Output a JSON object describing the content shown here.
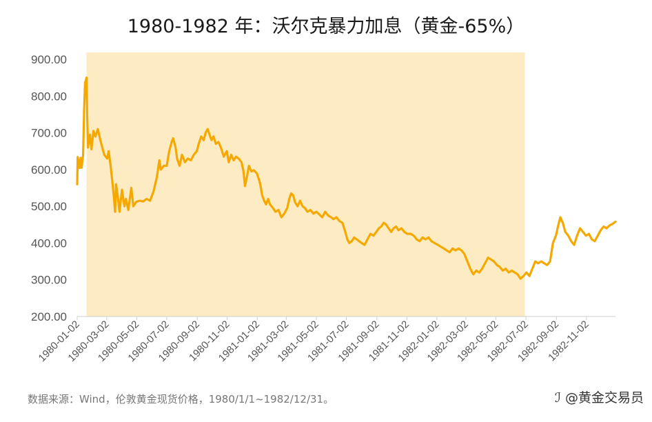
{
  "chart_data": {
    "type": "line",
    "title": "1980-1982 年：沃尔克暴力加息（黄金-65%）",
    "xlabel": "",
    "ylabel": "",
    "ylim": [
      200,
      900
    ],
    "yticks": [
      "200.00",
      "300.00",
      "400.00",
      "500.00",
      "600.00",
      "700.00",
      "800.00",
      "900.00"
    ],
    "xticks": [
      "1980-01-02",
      "1980-03-02",
      "1980-05-02",
      "1980-07-02",
      "1980-09-02",
      "1980-11-02",
      "1981-01-02",
      "1981-03-02",
      "1981-05-02",
      "1981-07-02",
      "1981-09-02",
      "1981-11-02",
      "1982-01-02",
      "1982-03-02",
      "1982-05-02",
      "1982-07-02",
      "1982-09-02",
      "1982-11-02"
    ],
    "xlim": [
      "1980-01-02",
      "1982-12-31"
    ],
    "grid": false,
    "line_color": "#f5a800",
    "shade_color": "#fdebc3",
    "shaded_range": [
      "1980-01-21",
      "1982-06-30"
    ],
    "series": [
      {
        "values": [
          [
            "1980-01-02",
            560
          ],
          [
            "1980-01-03",
            634
          ],
          [
            "1980-01-07",
            604
          ],
          [
            "1980-01-09",
            632
          ],
          [
            "1980-01-11",
            605
          ],
          [
            "1980-01-14",
            640
          ],
          [
            "1980-01-16",
            760
          ],
          [
            "1980-01-18",
            835
          ],
          [
            "1980-01-21",
            850
          ],
          [
            "1980-01-22",
            760
          ],
          [
            "1980-01-24",
            660
          ],
          [
            "1980-01-28",
            695
          ],
          [
            "1980-01-31",
            655
          ],
          [
            "1980-02-04",
            705
          ],
          [
            "1980-02-08",
            690
          ],
          [
            "1980-02-13",
            710
          ],
          [
            "1980-02-18",
            680
          ],
          [
            "1980-02-22",
            660
          ],
          [
            "1980-02-26",
            640
          ],
          [
            "1980-03-03",
            630
          ],
          [
            "1980-03-06",
            650
          ],
          [
            "1980-03-10",
            610
          ],
          [
            "1980-03-14",
            560
          ],
          [
            "1980-03-17",
            520
          ],
          [
            "1980-03-19",
            485
          ],
          [
            "1980-03-21",
            560
          ],
          [
            "1980-03-25",
            520
          ],
          [
            "1980-03-28",
            485
          ],
          [
            "1980-04-02",
            545
          ],
          [
            "1980-04-07",
            500
          ],
          [
            "1980-04-10",
            520
          ],
          [
            "1980-04-15",
            490
          ],
          [
            "1980-04-21",
            550
          ],
          [
            "1980-04-25",
            500
          ],
          [
            "1980-05-01",
            512
          ],
          [
            "1980-05-08",
            515
          ],
          [
            "1980-05-15",
            513
          ],
          [
            "1980-05-22",
            520
          ],
          [
            "1980-05-29",
            515
          ],
          [
            "1980-06-05",
            540
          ],
          [
            "1980-06-12",
            580
          ],
          [
            "1980-06-17",
            625
          ],
          [
            "1980-06-20",
            600
          ],
          [
            "1980-06-26",
            610
          ],
          [
            "1980-07-02",
            610
          ],
          [
            "1980-07-07",
            650
          ],
          [
            "1980-07-12",
            675
          ],
          [
            "1980-07-15",
            685
          ],
          [
            "1980-07-20",
            660
          ],
          [
            "1980-07-23",
            630
          ],
          [
            "1980-07-28",
            610
          ],
          [
            "1980-08-02",
            640
          ],
          [
            "1980-08-08",
            620
          ],
          [
            "1980-08-14",
            630
          ],
          [
            "1980-08-20",
            625
          ],
          [
            "1980-08-26",
            640
          ],
          [
            "1980-09-01",
            650
          ],
          [
            "1980-09-05",
            670
          ],
          [
            "1980-09-10",
            690
          ],
          [
            "1980-09-15",
            680
          ],
          [
            "1980-09-19",
            700
          ],
          [
            "1980-09-23",
            710
          ],
          [
            "1980-09-27",
            695
          ],
          [
            "1980-10-01",
            680
          ],
          [
            "1980-10-05",
            690
          ],
          [
            "1980-10-10",
            670
          ],
          [
            "1980-10-15",
            675
          ],
          [
            "1980-10-20",
            660
          ],
          [
            "1980-10-26",
            635
          ],
          [
            "1980-11-01",
            650
          ],
          [
            "1980-11-05",
            620
          ],
          [
            "1980-11-10",
            640
          ],
          [
            "1980-11-15",
            625
          ],
          [
            "1980-11-20",
            635
          ],
          [
            "1980-11-25",
            630
          ],
          [
            "1980-12-01",
            620
          ],
          [
            "1980-12-05",
            595
          ],
          [
            "1980-12-08",
            555
          ],
          [
            "1980-12-12",
            580
          ],
          [
            "1980-12-16",
            610
          ],
          [
            "1980-12-21",
            595
          ],
          [
            "1980-12-26",
            598
          ],
          [
            "1981-01-01",
            590
          ],
          [
            "1981-01-05",
            575
          ],
          [
            "1981-01-08",
            560
          ],
          [
            "1981-01-12",
            530
          ],
          [
            "1981-01-16",
            515
          ],
          [
            "1981-01-20",
            505
          ],
          [
            "1981-01-24",
            520
          ],
          [
            "1981-01-28",
            505
          ],
          [
            "1981-02-03",
            495
          ],
          [
            "1981-02-08",
            485
          ],
          [
            "1981-02-14",
            490
          ],
          [
            "1981-02-20",
            470
          ],
          [
            "1981-02-26",
            480
          ],
          [
            "1981-03-04",
            495
          ],
          [
            "1981-03-08",
            520
          ],
          [
            "1981-03-12",
            535
          ],
          [
            "1981-03-16",
            530
          ],
          [
            "1981-03-20",
            510
          ],
          [
            "1981-03-25",
            500
          ],
          [
            "1981-03-30",
            515
          ],
          [
            "1981-04-04",
            500
          ],
          [
            "1981-04-09",
            495
          ],
          [
            "1981-04-14",
            485
          ],
          [
            "1981-04-20",
            490
          ],
          [
            "1981-04-26",
            480
          ],
          [
            "1981-05-02",
            485
          ],
          [
            "1981-05-08",
            478
          ],
          [
            "1981-05-14",
            470
          ],
          [
            "1981-05-20",
            485
          ],
          [
            "1981-05-26",
            475
          ],
          [
            "1981-06-01",
            470
          ],
          [
            "1981-06-06",
            465
          ],
          [
            "1981-06-12",
            470
          ],
          [
            "1981-06-18",
            460
          ],
          [
            "1981-06-24",
            455
          ],
          [
            "1981-06-30",
            430
          ],
          [
            "1981-07-04",
            410
          ],
          [
            "1981-07-08",
            400
          ],
          [
            "1981-07-13",
            405
          ],
          [
            "1981-07-18",
            415
          ],
          [
            "1981-07-23",
            410
          ],
          [
            "1981-07-28",
            405
          ],
          [
            "1981-08-02",
            400
          ],
          [
            "1981-08-08",
            395
          ],
          [
            "1981-08-14",
            410
          ],
          [
            "1981-08-20",
            425
          ],
          [
            "1981-08-26",
            420
          ],
          [
            "1981-09-01",
            430
          ],
          [
            "1981-09-06",
            440
          ],
          [
            "1981-09-11",
            445
          ],
          [
            "1981-09-16",
            455
          ],
          [
            "1981-09-21",
            450
          ],
          [
            "1981-09-26",
            440
          ],
          [
            "1981-10-01",
            430
          ],
          [
            "1981-10-06",
            440
          ],
          [
            "1981-10-11",
            445
          ],
          [
            "1981-10-16",
            435
          ],
          [
            "1981-10-22",
            440
          ],
          [
            "1981-10-28",
            430
          ],
          [
            "1981-11-03",
            425
          ],
          [
            "1981-11-10",
            425
          ],
          [
            "1981-11-16",
            420
          ],
          [
            "1981-11-22",
            410
          ],
          [
            "1981-11-28",
            405
          ],
          [
            "1981-12-04",
            415
          ],
          [
            "1981-12-10",
            410
          ],
          [
            "1981-12-16",
            415
          ],
          [
            "1981-12-22",
            405
          ],
          [
            "1981-12-28",
            400
          ],
          [
            "1982-01-04",
            395
          ],
          [
            "1982-01-10",
            390
          ],
          [
            "1982-01-16",
            385
          ],
          [
            "1982-01-22",
            380
          ],
          [
            "1982-01-28",
            375
          ],
          [
            "1982-02-03",
            385
          ],
          [
            "1982-02-09",
            380
          ],
          [
            "1982-02-15",
            385
          ],
          [
            "1982-02-21",
            380
          ],
          [
            "1982-02-27",
            370
          ],
          [
            "1982-03-05",
            350
          ],
          [
            "1982-03-11",
            330
          ],
          [
            "1982-03-17",
            315
          ],
          [
            "1982-03-23",
            325
          ],
          [
            "1982-03-29",
            320
          ],
          [
            "1982-04-04",
            330
          ],
          [
            "1982-04-10",
            345
          ],
          [
            "1982-04-16",
            360
          ],
          [
            "1982-04-22",
            355
          ],
          [
            "1982-04-28",
            350
          ],
          [
            "1982-05-04",
            340
          ],
          [
            "1982-05-10",
            335
          ],
          [
            "1982-05-16",
            325
          ],
          [
            "1982-05-22",
            330
          ],
          [
            "1982-05-28",
            320
          ],
          [
            "1982-06-03",
            325
          ],
          [
            "1982-06-09",
            320
          ],
          [
            "1982-06-15",
            315
          ],
          [
            "1982-06-21",
            303
          ],
          [
            "1982-06-27",
            310
          ],
          [
            "1982-07-03",
            320
          ],
          [
            "1982-07-09",
            310
          ],
          [
            "1982-07-15",
            330
          ],
          [
            "1982-07-21",
            350
          ],
          [
            "1982-07-27",
            345
          ],
          [
            "1982-08-02",
            350
          ],
          [
            "1982-08-08",
            345
          ],
          [
            "1982-08-14",
            340
          ],
          [
            "1982-08-20",
            350
          ],
          [
            "1982-08-26",
            400
          ],
          [
            "1982-09-01",
            420
          ],
          [
            "1982-09-06",
            450
          ],
          [
            "1982-09-10",
            470
          ],
          [
            "1982-09-15",
            455
          ],
          [
            "1982-09-20",
            430
          ],
          [
            "1982-09-26",
            420
          ],
          [
            "1982-10-02",
            405
          ],
          [
            "1982-10-08",
            395
          ],
          [
            "1982-10-14",
            420
          ],
          [
            "1982-10-20",
            440
          ],
          [
            "1982-10-26",
            430
          ],
          [
            "1982-11-01",
            420
          ],
          [
            "1982-11-07",
            425
          ],
          [
            "1982-11-13",
            410
          ],
          [
            "1982-11-19",
            405
          ],
          [
            "1982-11-25",
            420
          ],
          [
            "1982-12-01",
            435
          ],
          [
            "1982-12-07",
            445
          ],
          [
            "1982-12-13",
            440
          ],
          [
            "1982-12-19",
            448
          ],
          [
            "1982-12-25",
            452
          ],
          [
            "1982-12-31",
            458
          ]
        ]
      }
    ]
  },
  "source_note": "数据来源：Wind，伦敦黄金现货价格，1980/1/1~1982/12/31。",
  "watermark": "@黄金交易员"
}
